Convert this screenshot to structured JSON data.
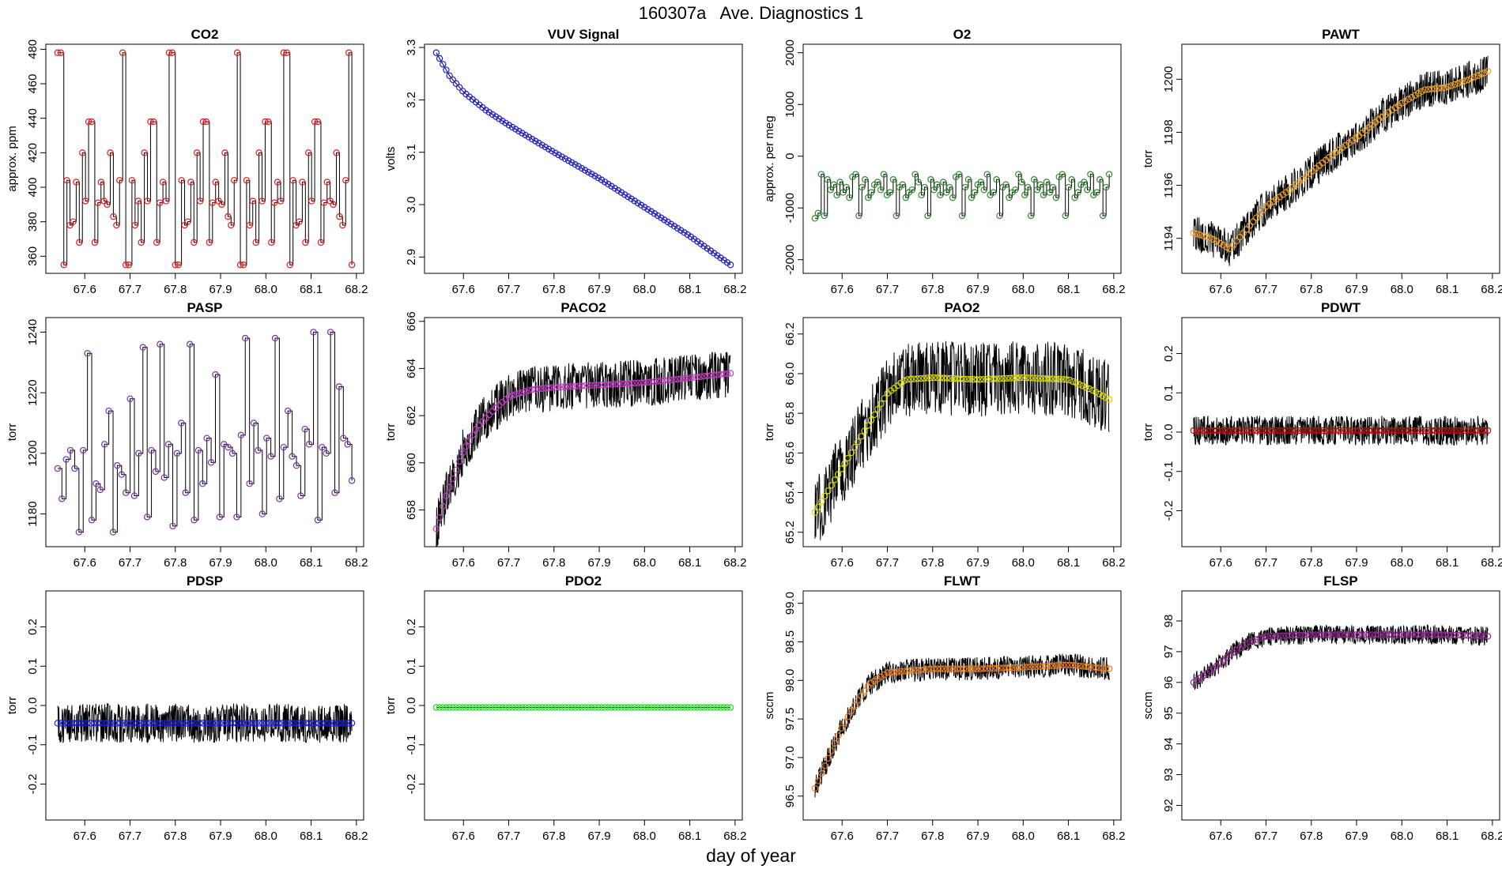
{
  "figure": {
    "title": "160307a   Ave. Diagnostics 1",
    "xlabel": "day of year"
  },
  "chart_data": [
    {
      "type": "line",
      "title": "CO2",
      "ylabel": "approx. ppm",
      "xlim": [
        67.54,
        68.19
      ],
      "ylim": [
        355,
        478
      ],
      "xticks": [
        67.6,
        67.7,
        67.8,
        67.9,
        68.0,
        68.1,
        68.2
      ],
      "yticks": [
        360,
        380,
        400,
        420,
        440,
        460,
        480
      ],
      "pattern": "step",
      "marker_color": "#e8191b",
      "noise": 0,
      "values": [
        478,
        478,
        355,
        404,
        378,
        380,
        403,
        368,
        420,
        392,
        438,
        438,
        368,
        391,
        403,
        392,
        390,
        420,
        383,
        378,
        404,
        478,
        355,
        355,
        404,
        378,
        392,
        368,
        420,
        392,
        438,
        438,
        368,
        391,
        403,
        392,
        478,
        478,
        355,
        355,
        404,
        378,
        380,
        403,
        368,
        420,
        392,
        438,
        438,
        368,
        391,
        403,
        392,
        390,
        420,
        383,
        378,
        404,
        478,
        355,
        355,
        404,
        378,
        392,
        368,
        420,
        392,
        438,
        438,
        368,
        391,
        403,
        392,
        478,
        478,
        355,
        404,
        378,
        380,
        403,
        368,
        420,
        392,
        438,
        438,
        368,
        391,
        403,
        392,
        390,
        420,
        383,
        378,
        404,
        478,
        355
      ]
    },
    {
      "type": "line",
      "title": "VUV Signal",
      "ylabel": "volts",
      "xlim": [
        67.54,
        68.19
      ],
      "ylim": [
        2.885,
        3.29
      ],
      "xticks": [
        67.6,
        67.7,
        67.8,
        67.9,
        68.0,
        68.1,
        68.2
      ],
      "yticks": [
        2.9,
        3.0,
        3.1,
        3.2,
        3.3
      ],
      "pattern": "curve",
      "marker_color": "#1f1fcf",
      "noise": 0,
      "points": [
        [
          67.54,
          3.29
        ],
        [
          67.57,
          3.245
        ],
        [
          67.6,
          3.215
        ],
        [
          67.65,
          3.18
        ],
        [
          67.7,
          3.152
        ],
        [
          67.8,
          3.1
        ],
        [
          67.9,
          3.05
        ],
        [
          68.0,
          2.995
        ],
        [
          68.1,
          2.94
        ],
        [
          68.19,
          2.885
        ]
      ]
    },
    {
      "type": "line",
      "title": "O2",
      "ylabel": "approx. per meg",
      "xlim": [
        67.54,
        68.19
      ],
      "ylim": [
        -2100,
        2000
      ],
      "xticks": [
        67.6,
        67.7,
        67.8,
        67.9,
        68.0,
        68.1,
        68.2
      ],
      "yticks": [
        -2000,
        -1000,
        0,
        1000,
        2000
      ],
      "pattern": "step",
      "marker_color": "#2e8b2e",
      "noise": 0,
      "values": [
        -1200,
        -1100,
        -350,
        -1150,
        -450,
        -650,
        -550,
        -750,
        -500,
        -700,
        -600,
        -800,
        -400,
        -350,
        -1150,
        -600,
        -450,
        -800,
        -700,
        -550,
        -500,
        -650,
        -350,
        -750,
        -700,
        -450,
        -1150,
        -600,
        -550,
        -800,
        -700,
        -650,
        -350,
        -500,
        -750,
        -600,
        -1150,
        -450,
        -650,
        -550,
        -750,
        -500,
        -700,
        -600,
        -800,
        -400,
        -350,
        -1150,
        -600,
        -450,
        -800,
        -700,
        -550,
        -500,
        -650,
        -350,
        -750,
        -700,
        -450,
        -1150,
        -600,
        -550,
        -800,
        -700,
        -650,
        -350,
        -500,
        -750,
        -600,
        -1150,
        -450,
        -650,
        -550,
        -750,
        -500,
        -700,
        -600,
        -800,
        -400,
        -350,
        -1150,
        -600,
        -450,
        -800,
        -700,
        -550,
        -500,
        -650,
        -350,
        -750,
        -700,
        -450,
        -1150,
        -600,
        -350
      ]
    },
    {
      "type": "line",
      "title": "PAWT",
      "ylabel": "torr",
      "xlim": [
        67.54,
        68.19
      ],
      "ylim": [
        1193,
        1201
      ],
      "xticks": [
        67.6,
        67.7,
        67.8,
        67.9,
        68.0,
        68.1,
        68.2
      ],
      "yticks": [
        1194,
        1196,
        1198,
        1200
      ],
      "pattern": "curve",
      "marker_color": "#f0a020",
      "noise": 0.55,
      "points": [
        [
          67.54,
          1194.2
        ],
        [
          67.58,
          1194.0
        ],
        [
          67.62,
          1193.6
        ],
        [
          67.66,
          1194.4
        ],
        [
          67.7,
          1195.2
        ],
        [
          67.75,
          1195.8
        ],
        [
          67.8,
          1196.5
        ],
        [
          67.85,
          1197.2
        ],
        [
          67.9,
          1197.8
        ],
        [
          67.95,
          1198.5
        ],
        [
          68.0,
          1199.1
        ],
        [
          68.05,
          1199.6
        ],
        [
          68.1,
          1199.7
        ],
        [
          68.15,
          1200.0
        ],
        [
          68.19,
          1200.3
        ]
      ]
    },
    {
      "type": "line",
      "title": "PASP",
      "ylabel": "torr",
      "xlim": [
        67.54,
        68.19
      ],
      "ylim": [
        1172,
        1242
      ],
      "xticks": [
        67.6,
        67.7,
        67.8,
        67.9,
        68.0,
        68.1,
        68.2
      ],
      "yticks": [
        1180,
        1200,
        1220,
        1240
      ],
      "pattern": "step",
      "marker_color": "#7b2fa8",
      "noise": 0,
      "values": [
        1195,
        1185,
        1198,
        1201,
        1195,
        1174,
        1201,
        1233,
        1178,
        1190,
        1188,
        1203,
        1214,
        1174,
        1196,
        1193,
        1187,
        1218,
        1186,
        1200,
        1235,
        1179,
        1201,
        1194,
        1236,
        1192,
        1203,
        1176,
        1200,
        1210,
        1187,
        1236,
        1178,
        1201,
        1190,
        1205,
        1197,
        1226,
        1179,
        1203,
        1202,
        1200,
        1179,
        1206,
        1238,
        1190,
        1210,
        1201,
        1180,
        1205,
        1199,
        1238,
        1185,
        1202,
        1214,
        1199,
        1196,
        1186,
        1208,
        1203,
        1240,
        1178,
        1202,
        1200,
        1240,
        1187,
        1222,
        1205,
        1203,
        1191
      ]
    },
    {
      "type": "line",
      "title": "PACO2",
      "ylabel": "torr",
      "xlim": [
        67.54,
        68.19
      ],
      "ylim": [
        656.8,
        665.8
      ],
      "xticks": [
        67.6,
        67.7,
        67.8,
        67.9,
        68.0,
        68.1,
        68.2
      ],
      "yticks": [
        658,
        660,
        662,
        664,
        666
      ],
      "pattern": "curve",
      "marker_color": "#c23ec2",
      "noise": 0.8,
      "points": [
        [
          67.54,
          657.2
        ],
        [
          67.56,
          658.5
        ],
        [
          67.58,
          659.5
        ],
        [
          67.6,
          660.5
        ],
        [
          67.63,
          661.5
        ],
        [
          67.67,
          662.3
        ],
        [
          67.7,
          662.8
        ],
        [
          67.75,
          663.1
        ],
        [
          67.8,
          663.2
        ],
        [
          67.9,
          663.3
        ],
        [
          68.0,
          663.4
        ],
        [
          68.1,
          663.6
        ],
        [
          68.19,
          663.8
        ]
      ]
    },
    {
      "type": "line",
      "title": "PAO2",
      "ylabel": "torr",
      "xlim": [
        67.54,
        68.19
      ],
      "ylim": [
        65.17,
        66.24
      ],
      "xticks": [
        67.6,
        67.7,
        67.8,
        67.9,
        68.0,
        68.1,
        68.2
      ],
      "yticks": [
        65.2,
        65.4,
        65.6,
        65.8,
        66.0,
        66.2
      ],
      "pattern": "curve",
      "marker_color": "#d8d800",
      "noise": 0.15,
      "points": [
        [
          67.54,
          65.3
        ],
        [
          67.58,
          65.45
        ],
        [
          67.62,
          65.6
        ],
        [
          67.66,
          65.75
        ],
        [
          67.7,
          65.9
        ],
        [
          67.74,
          65.97
        ],
        [
          67.8,
          65.98
        ],
        [
          67.9,
          65.97
        ],
        [
          68.0,
          65.98
        ],
        [
          68.1,
          65.97
        ],
        [
          68.15,
          65.92
        ],
        [
          68.19,
          65.87
        ]
      ]
    },
    {
      "type": "line",
      "title": "PDWT",
      "ylabel": "torr",
      "xlim": [
        67.54,
        68.19
      ],
      "ylim": [
        -0.27,
        0.27
      ],
      "xticks": [
        67.6,
        67.7,
        67.8,
        67.9,
        68.0,
        68.1,
        68.2
      ],
      "yticks": [
        -0.2,
        -0.1,
        0.0,
        0.1,
        0.2
      ],
      "pattern": "curve",
      "marker_color": "#b01010",
      "noise": 0.03,
      "points": [
        [
          67.54,
          0.004
        ],
        [
          68.19,
          0.004
        ]
      ]
    },
    {
      "type": "line",
      "title": "PDSP",
      "ylabel": "torr",
      "xlim": [
        67.54,
        68.19
      ],
      "ylim": [
        -0.27,
        0.27
      ],
      "xticks": [
        67.6,
        67.7,
        67.8,
        67.9,
        68.0,
        68.1,
        68.2
      ],
      "yticks": [
        -0.2,
        -0.1,
        0.0,
        0.1,
        0.2
      ],
      "pattern": "curve",
      "marker_color": "#1f1fcf",
      "noise": 0.04,
      "points": [
        [
          67.54,
          -0.045
        ],
        [
          68.19,
          -0.045
        ]
      ]
    },
    {
      "type": "line",
      "title": "PDO2",
      "ylabel": "torr",
      "xlim": [
        67.54,
        68.19
      ],
      "ylim": [
        -0.27,
        0.27
      ],
      "xticks": [
        67.6,
        67.7,
        67.8,
        67.9,
        68.0,
        68.1,
        68.2
      ],
      "yticks": [
        -0.2,
        -0.1,
        0.0,
        0.1,
        0.2
      ],
      "pattern": "curve",
      "marker_color": "#22e022",
      "noise": 0,
      "points": [
        [
          67.54,
          -0.005
        ],
        [
          68.19,
          -0.005
        ]
      ]
    },
    {
      "type": "line",
      "title": "FLWT",
      "ylabel": "sccm",
      "xlim": [
        67.54,
        68.19
      ],
      "ylim": [
        96.3,
        99.05
      ],
      "xticks": [
        67.6,
        67.7,
        67.8,
        67.9,
        68.0,
        68.1,
        68.2
      ],
      "yticks": [
        96.5,
        97.0,
        97.5,
        98.0,
        98.5,
        99.0
      ],
      "pattern": "curve",
      "marker_color": "#e67e1e",
      "noise": 0.12,
      "points": [
        [
          67.54,
          96.6
        ],
        [
          67.57,
          97.0
        ],
        [
          67.6,
          97.4
        ],
        [
          67.63,
          97.7
        ],
        [
          67.66,
          97.95
        ],
        [
          67.7,
          98.1
        ],
        [
          67.8,
          98.15
        ],
        [
          67.9,
          98.15
        ],
        [
          68.0,
          98.17
        ],
        [
          68.1,
          98.2
        ],
        [
          68.19,
          98.15
        ]
      ]
    },
    {
      "type": "line",
      "title": "FLSP",
      "ylabel": "sccm",
      "xlim": [
        67.54,
        68.19
      ],
      "ylim": [
        91.8,
        98.7
      ],
      "xticks": [
        67.6,
        67.7,
        67.8,
        67.9,
        68.0,
        68.1,
        68.2
      ],
      "yticks": [
        92,
        93,
        94,
        95,
        96,
        97,
        98
      ],
      "pattern": "curve",
      "marker_color": "#8a2a8a",
      "noise": 0.25,
      "points": [
        [
          67.54,
          96.0
        ],
        [
          67.58,
          96.4
        ],
        [
          67.62,
          96.9
        ],
        [
          67.66,
          97.3
        ],
        [
          67.7,
          97.5
        ],
        [
          67.8,
          97.55
        ],
        [
          67.9,
          97.55
        ],
        [
          68.0,
          97.55
        ],
        [
          68.1,
          97.55
        ],
        [
          68.19,
          97.5
        ]
      ]
    }
  ]
}
